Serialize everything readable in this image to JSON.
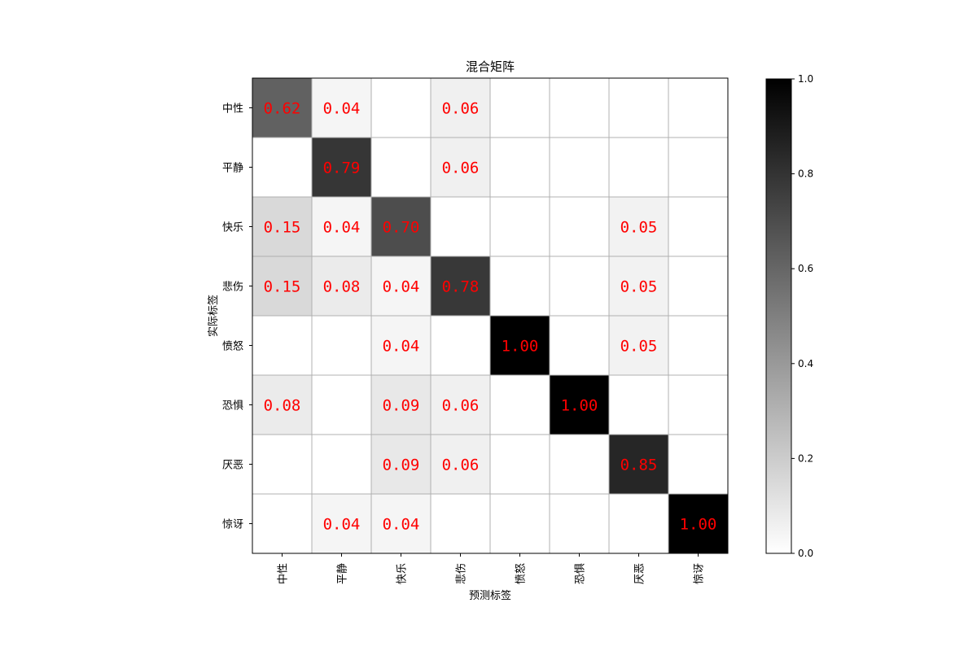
{
  "chart_data": {
    "type": "heatmap",
    "title": "混合矩阵",
    "xlabel": "预测标签",
    "ylabel": "实际标签",
    "x_categories": [
      "中性",
      "平静",
      "快乐",
      "悲伤",
      "愤怒",
      "恐惧",
      "厌恶",
      "惊讶"
    ],
    "y_categories": [
      "中性",
      "平静",
      "快乐",
      "悲伤",
      "愤怒",
      "恐惧",
      "厌恶",
      "惊讶"
    ],
    "values": [
      [
        0.62,
        0.04,
        null,
        0.06,
        null,
        null,
        null,
        null
      ],
      [
        null,
        0.79,
        null,
        0.06,
        null,
        null,
        null,
        null
      ],
      [
        0.15,
        0.04,
        0.7,
        null,
        null,
        null,
        0.05,
        null
      ],
      [
        0.15,
        0.08,
        0.04,
        0.78,
        null,
        null,
        0.05,
        null
      ],
      [
        null,
        null,
        0.04,
        null,
        1.0,
        null,
        0.05,
        null
      ],
      [
        0.08,
        null,
        0.09,
        0.06,
        null,
        1.0,
        null,
        null
      ],
      [
        null,
        null,
        0.09,
        0.06,
        null,
        null,
        0.85,
        null
      ],
      [
        null,
        0.04,
        0.04,
        null,
        null,
        null,
        null,
        1.0
      ]
    ],
    "colorscale": {
      "min": 0.0,
      "max": 1.0,
      "low_color": "#ffffff",
      "high_color": "#000000"
    },
    "colorbar_ticks": [
      "0.0",
      "0.2",
      "0.4",
      "0.6",
      "0.8",
      "1.0"
    ],
    "annotation_color": "#ff0000",
    "grid": true
  }
}
